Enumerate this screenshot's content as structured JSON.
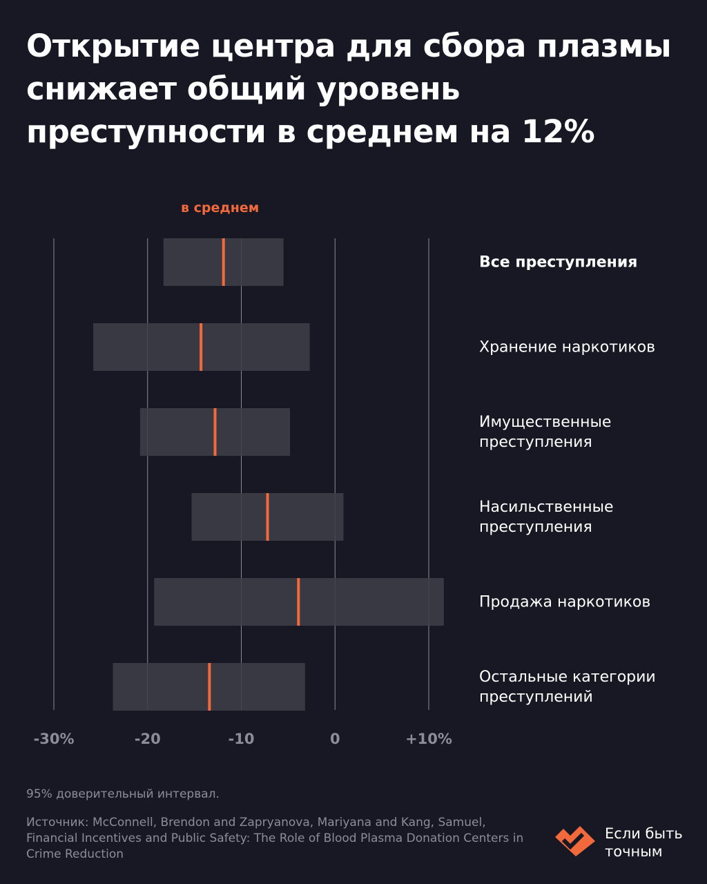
{
  "title": "Открытие центра для сбора плазмы снижает общий уровень преступности в среднем на 12%",
  "avg_label": "в среднем",
  "note": "95% доверительный интервал.",
  "source": "Источник: McConnell, Brendon and Zapryanova, Mariyana and Kang, Samuel, Financial Incentives and Public Safety: The Role of Blood Plasma Donation Centers in Crime Reduction",
  "brand": {
    "name": "Если быть\nточным"
  },
  "colors": {
    "background": "#171824",
    "bar": "#3d3d47",
    "mean": "#f26a3c",
    "grid": "#8a8a95",
    "muted": "#8c8d99",
    "brand_logo": "#f26a3c"
  },
  "icons": {
    "logo": "heart-check-logo-icon"
  },
  "chart_data": {
    "type": "interval",
    "xlim": [
      -30,
      10
    ],
    "xticks": [
      -30,
      -20,
      -10,
      0,
      10
    ],
    "xtick_labels": [
      "-30%",
      "-20",
      "-10",
      "0",
      "+10%"
    ],
    "grid": true,
    "categories": [
      "Все преступления",
      "Хранение наркотиков",
      "Имущественные\nпреступления",
      "Насильственные\nпреступления",
      "Продажа наркотиков",
      "Остальные категории\nпреступлений"
    ],
    "low": [
      -18.3,
      -25.8,
      -20.8,
      -15.3,
      -19.3,
      -23.7
    ],
    "mean": [
      -11.9,
      -14.3,
      -12.8,
      -7.2,
      -3.9,
      -13.4
    ],
    "high": [
      -5.5,
      -2.7,
      -4.8,
      0.9,
      11.6,
      -3.2
    ]
  }
}
